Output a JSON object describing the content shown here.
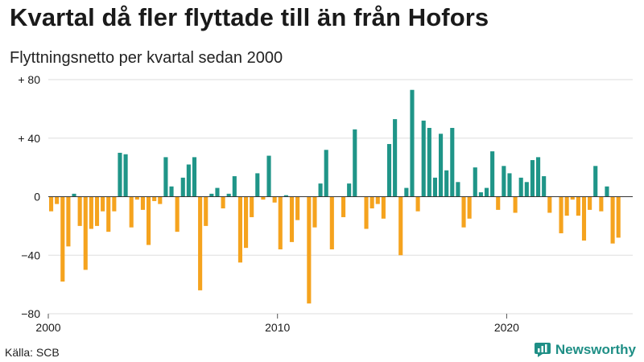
{
  "chart_data": {
    "type": "bar",
    "title": "Kvartal då fler flyttade till än från Hofors",
    "subtitle": "Flyttningsnetto per kvartal sedan 2000",
    "xlabel": "",
    "ylabel": "",
    "x_start_year": 2000,
    "xlim": [
      2000,
      2025.5
    ],
    "x_ticks": [
      {
        "value": 2000,
        "label": "2000"
      },
      {
        "value": 2010,
        "label": "2010"
      },
      {
        "value": 2020,
        "label": "2020"
      }
    ],
    "ylim": [
      -80,
      80
    ],
    "y_ticks": [
      {
        "value": 80,
        "label": "+ 80"
      },
      {
        "value": 40,
        "label": "+ 40"
      },
      {
        "value": 0,
        "label": "0"
      },
      {
        "value": -40,
        "label": "−40"
      },
      {
        "value": -80,
        "label": "−80"
      }
    ],
    "grid": true,
    "colors": {
      "positive": "#1f9588",
      "negative": "#f5a31e",
      "grid": "#dddddd",
      "zero_line": "#333333"
    },
    "values": [
      -10,
      -5,
      -58,
      -34,
      2,
      -20,
      -50,
      -22,
      -20,
      -10,
      -24,
      -10,
      30,
      29,
      -21,
      -2,
      -9,
      -33,
      -3,
      -5,
      27,
      7,
      -24,
      13,
      22,
      27,
      -64,
      -20,
      2,
      6,
      -8,
      2,
      14,
      -45,
      -35,
      -14,
      16,
      -2,
      28,
      -4,
      -36,
      1,
      -31,
      -16,
      0,
      -73,
      -21,
      9,
      32,
      -36,
      0,
      -14,
      9,
      46,
      0,
      -22,
      -8,
      -5,
      -15,
      36,
      53,
      -40,
      6,
      73,
      -10,
      52,
      47,
      13,
      43,
      18,
      47,
      10,
      -21,
      -15,
      20,
      3,
      6,
      31,
      -9,
      21,
      16,
      -11,
      13,
      10,
      25,
      27,
      14,
      -11,
      0,
      -25,
      -13,
      -2,
      -13,
      -30,
      -9,
      21,
      -10,
      7,
      -32,
      -28
    ]
  },
  "footer": {
    "source": "Källa: SCB",
    "brand": "Newsworthy",
    "brand_icon": "newsworthy-logo-icon"
  }
}
